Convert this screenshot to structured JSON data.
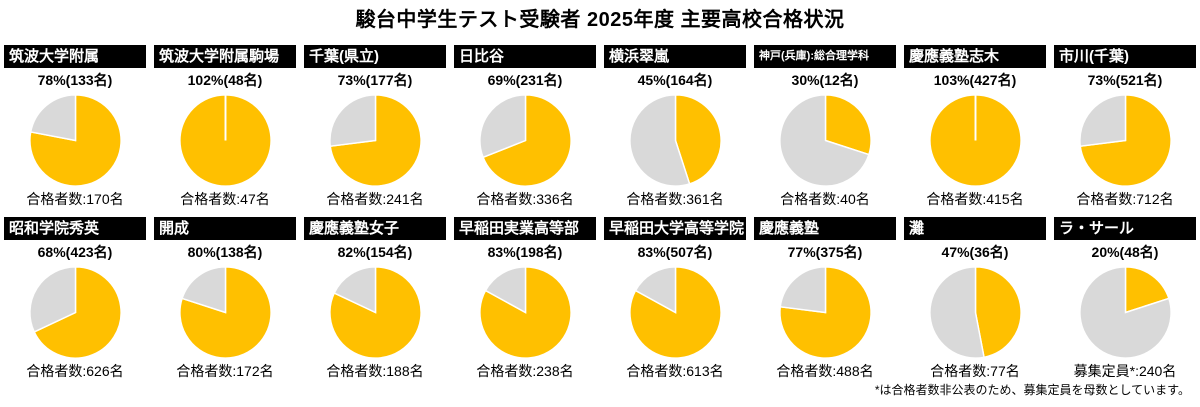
{
  "title": "駿台中学生テスト受験者 2025年度 主要高校合格状況",
  "footnote": "*は合格者数非公表のため、募集定員を母数としています。",
  "colors": {
    "pass": "#FFC000",
    "remainder": "#D9D9D9",
    "header_bg": "#000000",
    "header_text": "#FFFFFF",
    "slice_border": "#FFFFFF"
  },
  "chart_data": {
    "type": "pie",
    "title": "駿台中学生テスト受験者 2025年度 主要高校合格状況",
    "layout": {
      "rows": 2,
      "columns": 8,
      "start_angle": "top",
      "direction": "clockwise"
    },
    "charts": [
      {
        "school": "筑波大学附属",
        "rate_label": "78%(133名)",
        "percent": 78,
        "passed": 133,
        "base_label": "合格者数:170名",
        "base": 170
      },
      {
        "school": "筑波大学附属駒場",
        "rate_label": "102%(48名)",
        "percent": 102,
        "passed": 48,
        "base_label": "合格者数:47名",
        "base": 47
      },
      {
        "school": "千葉(県立)",
        "rate_label": "73%(177名)",
        "percent": 73,
        "passed": 177,
        "base_label": "合格者数:241名",
        "base": 241
      },
      {
        "school": "日比谷",
        "rate_label": "69%(231名)",
        "percent": 69,
        "passed": 231,
        "base_label": "合格者数:336名",
        "base": 336
      },
      {
        "school": "横浜翠嵐",
        "rate_label": "45%(164名)",
        "percent": 45,
        "passed": 164,
        "base_label": "合格者数:361名",
        "base": 361
      },
      {
        "school": "神戸(兵庫):総合理学科",
        "rate_label": "30%(12名)",
        "percent": 30,
        "passed": 12,
        "base_label": "合格者数:40名",
        "base": 40
      },
      {
        "school": "慶應義塾志木",
        "rate_label": "103%(427名)",
        "percent": 103,
        "passed": 427,
        "base_label": "合格者数:415名",
        "base": 415
      },
      {
        "school": "市川(千葉)",
        "rate_label": "73%(521名)",
        "percent": 73,
        "passed": 521,
        "base_label": "合格者数:712名",
        "base": 712
      },
      {
        "school": "昭和学院秀英",
        "rate_label": "68%(423名)",
        "percent": 68,
        "passed": 423,
        "base_label": "合格者数:626名",
        "base": 626
      },
      {
        "school": "開成",
        "rate_label": "80%(138名)",
        "percent": 80,
        "passed": 138,
        "base_label": "合格者数:172名",
        "base": 172
      },
      {
        "school": "慶應義塾女子",
        "rate_label": "82%(154名)",
        "percent": 82,
        "passed": 154,
        "base_label": "合格者数:188名",
        "base": 188
      },
      {
        "school": "早稲田実業高等部",
        "rate_label": "83%(198名)",
        "percent": 83,
        "passed": 198,
        "base_label": "合格者数:238名",
        "base": 238
      },
      {
        "school": "早稲田大学高等学院",
        "rate_label": "83%(507名)",
        "percent": 83,
        "passed": 507,
        "base_label": "合格者数:613名",
        "base": 613
      },
      {
        "school": "慶應義塾",
        "rate_label": "77%(375名)",
        "percent": 77,
        "passed": 375,
        "base_label": "合格者数:488名",
        "base": 488
      },
      {
        "school": "灘",
        "rate_label": "47%(36名)",
        "percent": 47,
        "passed": 36,
        "base_label": "合格者数:77名",
        "base": 77
      },
      {
        "school": "ラ・サール",
        "rate_label": "20%(48名)",
        "percent": 20,
        "passed": 48,
        "base_label": "募集定員*:240名",
        "base": 240
      }
    ]
  }
}
